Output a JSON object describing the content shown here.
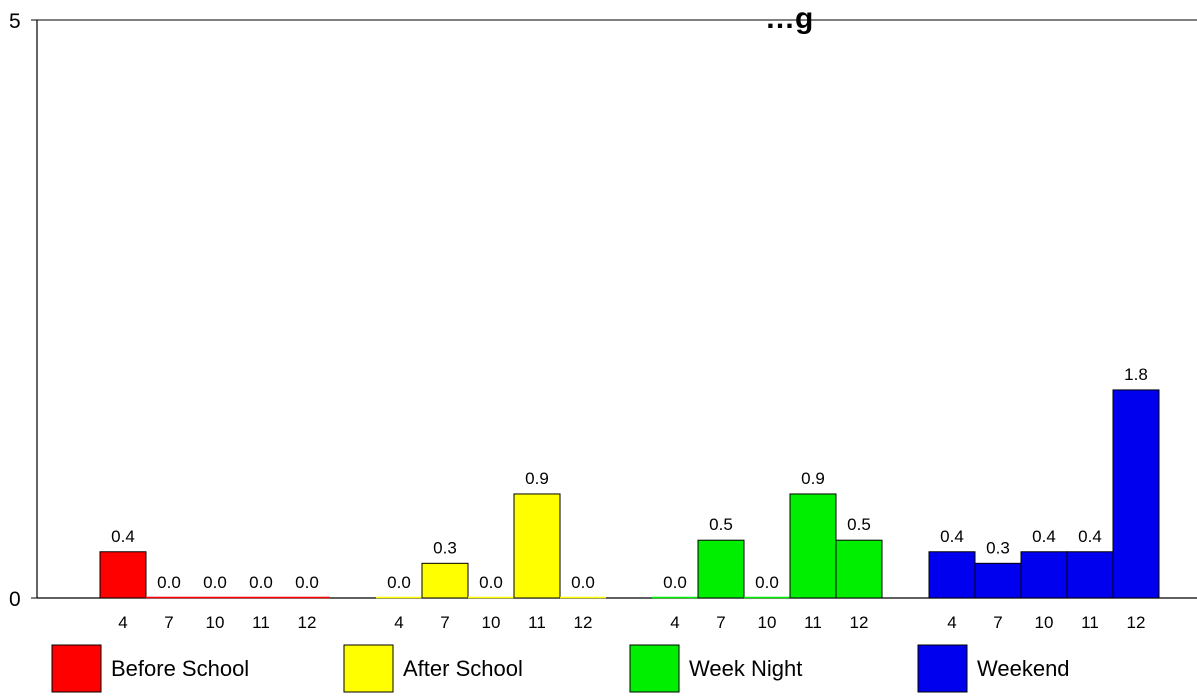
{
  "chart_data": {
    "type": "bar",
    "title": "…g",
    "ylim": [
      0,
      5
    ],
    "y_tick_labels": [
      "0",
      "5"
    ],
    "grid": false,
    "legend_position": "bottom",
    "groups": [
      {
        "name": "Before School",
        "color": "#ff0000",
        "categories": [
          "4",
          "7",
          "10",
          "11",
          "12"
        ],
        "values": [
          0.4,
          0.0,
          0.0,
          0.0,
          0.0
        ],
        "value_labels": [
          "0.4",
          "0.0",
          "0.0",
          "0.0",
          "0.0"
        ]
      },
      {
        "name": "After School",
        "color": "#ffff00",
        "categories": [
          "4",
          "7",
          "10",
          "11",
          "12"
        ],
        "values": [
          0.0,
          0.3,
          0.0,
          0.9,
          0.0
        ],
        "value_labels": [
          "0.0",
          "0.3",
          "0.0",
          "0.9",
          "0.0"
        ]
      },
      {
        "name": "Week Night",
        "color": "#00ee00",
        "categories": [
          "4",
          "7",
          "10",
          "11",
          "12"
        ],
        "values": [
          0.0,
          0.5,
          0.0,
          0.9,
          0.5
        ],
        "value_labels": [
          "0.0",
          "0.5",
          "0.0",
          "0.9",
          "0.5"
        ]
      },
      {
        "name": "Weekend",
        "color": "#0000ee",
        "categories": [
          "4",
          "7",
          "10",
          "11",
          "12"
        ],
        "values": [
          0.4,
          0.3,
          0.4,
          0.4,
          1.8
        ],
        "value_labels": [
          "0.4",
          "0.3",
          "0.4",
          "0.4",
          "1.8"
        ]
      }
    ]
  }
}
